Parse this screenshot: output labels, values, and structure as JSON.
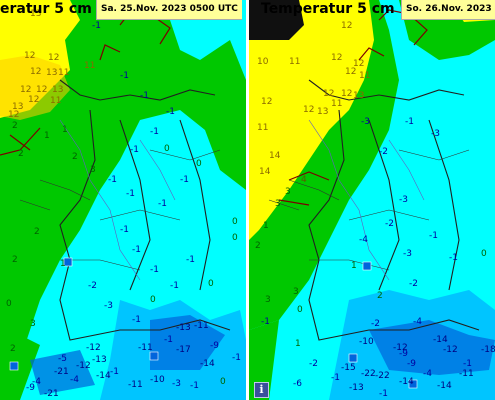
{
  "panels": [
    {
      "title": "eratur 5 cm",
      "date": "Sa. 25.Nov. 2023 0500 UTC",
      "values": [
        [
          "13",
          30,
          10
        ],
        [
          "12",
          24,
          52
        ],
        [
          "12",
          48,
          54
        ],
        [
          "12",
          30,
          68
        ],
        [
          "13",
          46,
          69
        ],
        [
          "11",
          58,
          69
        ],
        [
          "12",
          20,
          86
        ],
        [
          "12",
          36,
          86
        ],
        [
          "13",
          52,
          86
        ],
        [
          "12",
          28,
          96
        ],
        [
          "13",
          12,
          103
        ],
        [
          "12",
          8,
          111
        ],
        [
          "11",
          50,
          97
        ],
        [
          "11",
          84,
          62
        ],
        [
          "-1",
          92,
          22
        ],
        [
          "-1",
          120,
          72
        ],
        [
          "-1",
          140,
          92
        ],
        [
          "-1",
          166,
          108
        ],
        [
          "-1",
          150,
          128
        ],
        [
          "-1",
          130,
          146
        ],
        [
          "1",
          44,
          132
        ],
        [
          "1",
          62,
          126
        ],
        [
          "2",
          18,
          150
        ],
        [
          "2",
          72,
          153
        ],
        [
          "3",
          90,
          166
        ],
        [
          "-1",
          108,
          176
        ],
        [
          "-1",
          126,
          190
        ],
        [
          "-1",
          158,
          200
        ],
        [
          "0",
          164,
          145
        ],
        [
          "0",
          196,
          160
        ],
        [
          "-1",
          180,
          176
        ],
        [
          "0",
          232,
          234
        ],
        [
          "-1",
          120,
          226
        ],
        [
          "-1",
          132,
          246
        ],
        [
          "-1",
          150,
          266
        ],
        [
          "-1",
          170,
          282
        ],
        [
          "-1",
          186,
          256
        ],
        [
          "0",
          208,
          280
        ],
        [
          "2",
          34,
          228
        ],
        [
          "2",
          12,
          256
        ],
        [
          "1",
          60,
          260
        ],
        [
          "-2",
          88,
          282
        ],
        [
          "-3",
          104,
          302
        ],
        [
          "-1",
          132,
          316
        ],
        [
          "0",
          150,
          296
        ],
        [
          "-1",
          164,
          336
        ],
        [
          "0",
          6,
          300
        ],
        [
          "2",
          10,
          345
        ],
        [
          "3",
          30,
          320
        ],
        [
          "-5",
          58,
          355
        ],
        [
          "-12",
          86,
          344
        ],
        [
          "-11",
          138,
          344
        ],
        [
          "-13",
          176,
          324
        ],
        [
          "-11",
          194,
          322
        ],
        [
          "-9",
          210,
          342
        ],
        [
          "-1",
          232,
          354
        ],
        [
          "-12",
          76,
          362
        ],
        [
          "-13",
          92,
          356
        ],
        [
          "-1",
          110,
          368
        ],
        [
          "-14",
          96,
          372
        ],
        [
          "-21",
          54,
          368
        ],
        [
          "-4",
          32,
          378
        ],
        [
          "-11",
          128,
          381
        ],
        [
          "-10",
          150,
          376
        ],
        [
          "-3",
          172,
          380
        ],
        [
          "-1",
          190,
          382
        ],
        [
          "-14",
          200,
          360
        ],
        [
          "0",
          220,
          378
        ],
        [
          "-9",
          26,
          384
        ],
        [
          "-21",
          44,
          390
        ],
        [
          "-4",
          70,
          376
        ],
        [
          "-17",
          176,
          346
        ],
        [
          "0",
          232,
          218
        ],
        [
          "2",
          12,
          122
        ]
      ]
    },
    {
      "title": "Temperatur 5 cm",
      "date": "So. 26.Nov. 2023 0500 UTC",
      "values": [
        [
          "12",
          92,
          22
        ],
        [
          "10",
          8,
          58
        ],
        [
          "11",
          40,
          58
        ],
        [
          "12",
          82,
          54
        ],
        [
          "12",
          104,
          60
        ],
        [
          "12",
          96,
          68
        ],
        [
          "11",
          110,
          72
        ],
        [
          "12",
          12,
          98
        ],
        [
          "12",
          74,
          90
        ],
        [
          "12",
          92,
          90
        ],
        [
          "13",
          104,
          92
        ],
        [
          "12",
          54,
          106
        ],
        [
          "13",
          68,
          108
        ],
        [
          "11",
          82,
          100
        ],
        [
          "11",
          8,
          124
        ],
        [
          "14",
          20,
          152
        ],
        [
          "14",
          10,
          168
        ],
        [
          "4",
          52,
          176
        ],
        [
          "3",
          36,
          188
        ],
        [
          "3",
          26,
          200
        ],
        [
          "1",
          14,
          222
        ],
        [
          "2",
          6,
          242
        ],
        [
          "-3",
          112,
          118
        ],
        [
          "-2",
          130,
          148
        ],
        [
          "-1",
          156,
          118
        ],
        [
          "-3",
          182,
          130
        ],
        [
          "-3",
          150,
          196
        ],
        [
          "-4",
          110,
          236
        ],
        [
          "-2",
          136,
          220
        ],
        [
          "-1",
          180,
          232
        ],
        [
          "-1",
          200,
          254
        ],
        [
          "-3",
          154,
          250
        ],
        [
          "-2",
          160,
          280
        ],
        [
          "1",
          102,
          262
        ],
        [
          "2",
          128,
          292
        ],
        [
          "3",
          44,
          288
        ],
        [
          "3",
          16,
          296
        ],
        [
          "-1",
          12,
          318
        ],
        [
          "1",
          46,
          340
        ],
        [
          "0",
          48,
          306
        ],
        [
          "-2",
          122,
          320
        ],
        [
          "-4",
          164,
          318
        ],
        [
          "-9",
          150,
          350
        ],
        [
          "-14",
          184,
          336
        ],
        [
          "-12",
          194,
          346
        ],
        [
          "-18",
          232,
          346
        ],
        [
          "-10",
          110,
          338
        ],
        [
          "-12",
          144,
          344
        ],
        [
          "-9",
          158,
          360
        ],
        [
          "-1",
          214,
          360
        ],
        [
          "-11",
          210,
          370
        ],
        [
          "-14",
          188,
          382
        ],
        [
          "-22",
          112,
          370
        ],
        [
          "-1",
          82,
          374
        ],
        [
          "-13",
          100,
          384
        ],
        [
          "-14",
          150,
          378
        ],
        [
          "-22",
          126,
          372
        ],
        [
          "-2",
          60,
          360
        ],
        [
          "-15",
          92,
          364
        ],
        [
          "-1",
          130,
          390
        ],
        [
          "-4",
          174,
          370
        ],
        [
          "0",
          232,
          250
        ],
        [
          "-6",
          44,
          380
        ]
      ]
    }
  ],
  "info_icon_label": "i",
  "colors": {
    "warm": "#ffff00",
    "mild": "#00c800",
    "cold": "#00ffff",
    "frost": "#0096ff",
    "deep": "#0050c8"
  }
}
